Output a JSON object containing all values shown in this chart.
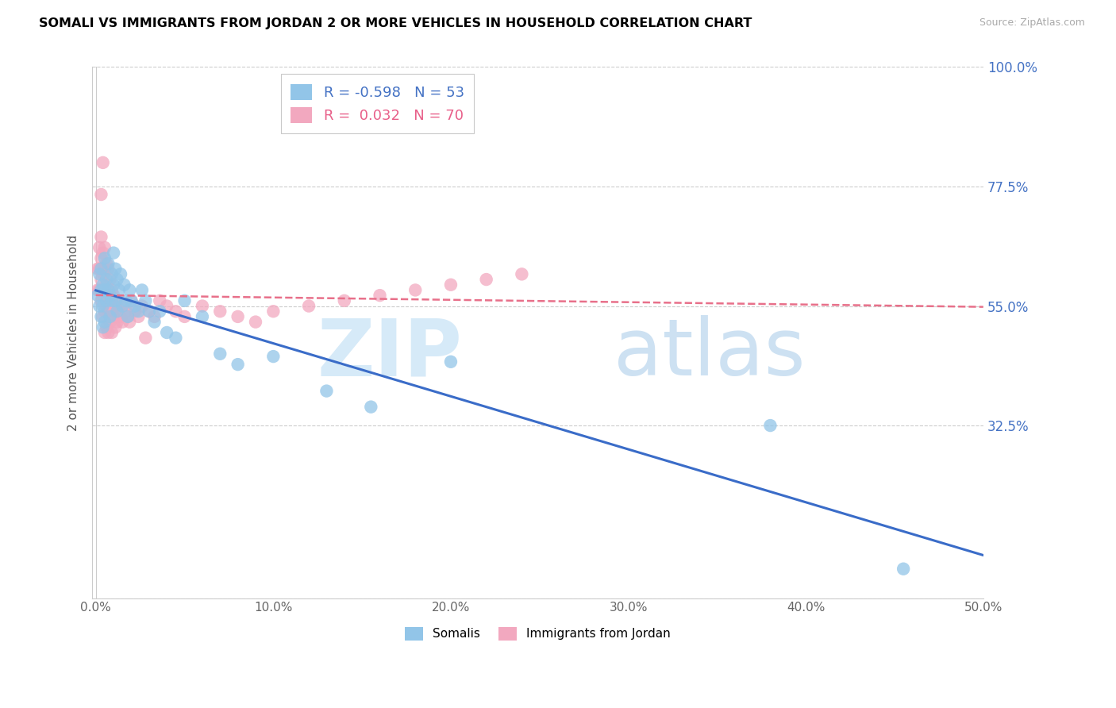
{
  "title": "SOMALI VS IMMIGRANTS FROM JORDAN 2 OR MORE VEHICLES IN HOUSEHOLD CORRELATION CHART",
  "source": "Source: ZipAtlas.com",
  "ylabel": "2 or more Vehicles in Household",
  "xlim": [
    -0.002,
    0.5
  ],
  "ylim": [
    0.0,
    1.0
  ],
  "somali_color": "#92C5E8",
  "jordan_color": "#F2A8BF",
  "trendline_somali_color": "#3A6CC8",
  "trendline_jordan_color": "#E8708A",
  "ytick_vals": [
    0.0,
    0.325,
    0.55,
    0.775,
    1.0
  ],
  "ytick_labels": [
    "",
    "32.5%",
    "55.0%",
    "77.5%",
    "100.0%"
  ],
  "xtick_vals": [
    0.0,
    0.1,
    0.2,
    0.3,
    0.4,
    0.5
  ],
  "xtick_labels": [
    "0.0%",
    "10.0%",
    "20.0%",
    "30.0%",
    "40.0%",
    "50.0%"
  ],
  "somali_x": [
    0.001,
    0.002,
    0.002,
    0.003,
    0.003,
    0.003,
    0.004,
    0.004,
    0.004,
    0.005,
    0.005,
    0.005,
    0.006,
    0.006,
    0.007,
    0.007,
    0.008,
    0.008,
    0.009,
    0.009,
    0.01,
    0.01,
    0.011,
    0.011,
    0.012,
    0.012,
    0.013,
    0.014,
    0.015,
    0.016,
    0.017,
    0.018,
    0.019,
    0.02,
    0.022,
    0.024,
    0.026,
    0.028,
    0.03,
    0.033,
    0.036,
    0.04,
    0.045,
    0.05,
    0.06,
    0.07,
    0.08,
    0.1,
    0.13,
    0.155,
    0.2,
    0.38,
    0.455
  ],
  "somali_y": [
    0.57,
    0.61,
    0.55,
    0.62,
    0.58,
    0.53,
    0.59,
    0.55,
    0.51,
    0.64,
    0.58,
    0.52,
    0.6,
    0.56,
    0.63,
    0.58,
    0.57,
    0.53,
    0.61,
    0.56,
    0.65,
    0.59,
    0.62,
    0.56,
    0.6,
    0.54,
    0.58,
    0.61,
    0.55,
    0.59,
    0.56,
    0.53,
    0.58,
    0.56,
    0.55,
    0.54,
    0.58,
    0.56,
    0.54,
    0.52,
    0.54,
    0.5,
    0.49,
    0.56,
    0.53,
    0.46,
    0.44,
    0.455,
    0.39,
    0.36,
    0.445,
    0.325,
    0.055
  ],
  "jordan_x": [
    0.001,
    0.001,
    0.002,
    0.002,
    0.002,
    0.003,
    0.003,
    0.003,
    0.003,
    0.004,
    0.004,
    0.004,
    0.004,
    0.005,
    0.005,
    0.005,
    0.005,
    0.005,
    0.006,
    0.006,
    0.006,
    0.006,
    0.007,
    0.007,
    0.007,
    0.007,
    0.008,
    0.008,
    0.008,
    0.009,
    0.009,
    0.009,
    0.01,
    0.01,
    0.011,
    0.011,
    0.012,
    0.012,
    0.013,
    0.014,
    0.015,
    0.016,
    0.017,
    0.018,
    0.019,
    0.02,
    0.022,
    0.024,
    0.026,
    0.028,
    0.03,
    0.033,
    0.036,
    0.04,
    0.045,
    0.05,
    0.06,
    0.07,
    0.08,
    0.09,
    0.1,
    0.12,
    0.14,
    0.16,
    0.18,
    0.2,
    0.22,
    0.24,
    0.003,
    0.004
  ],
  "jordan_y": [
    0.62,
    0.58,
    0.66,
    0.62,
    0.58,
    0.68,
    0.64,
    0.6,
    0.56,
    0.65,
    0.61,
    0.57,
    0.53,
    0.66,
    0.62,
    0.58,
    0.54,
    0.5,
    0.63,
    0.59,
    0.55,
    0.51,
    0.62,
    0.58,
    0.54,
    0.5,
    0.6,
    0.56,
    0.52,
    0.58,
    0.54,
    0.5,
    0.57,
    0.53,
    0.55,
    0.51,
    0.56,
    0.52,
    0.54,
    0.53,
    0.52,
    0.55,
    0.54,
    0.53,
    0.52,
    0.56,
    0.54,
    0.53,
    0.55,
    0.49,
    0.54,
    0.53,
    0.56,
    0.55,
    0.54,
    0.53,
    0.55,
    0.54,
    0.53,
    0.52,
    0.54,
    0.55,
    0.56,
    0.57,
    0.58,
    0.59,
    0.6,
    0.61,
    0.76,
    0.82
  ]
}
